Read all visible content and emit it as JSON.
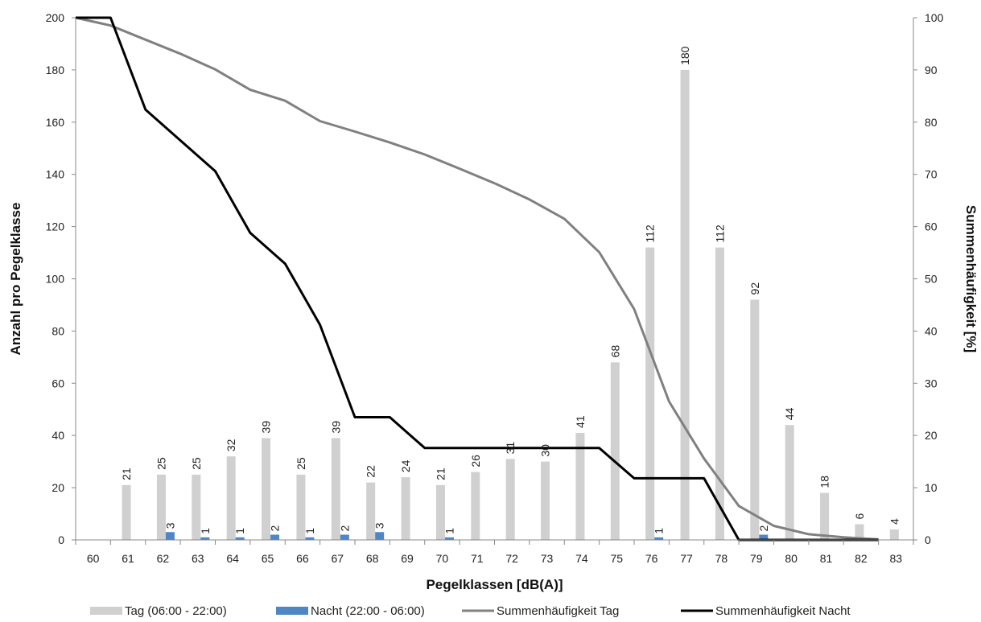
{
  "chart_data": {
    "type": "bar",
    "xlabel": "Pegelklassen [dB(A)]",
    "ylabel": "Anzahl pro Pegelklasse",
    "y2label": "Summenhäufigkeit [%]",
    "categories": [
      "60",
      "61",
      "62",
      "63",
      "64",
      "65",
      "66",
      "67",
      "68",
      "69",
      "70",
      "71",
      "72",
      "73",
      "74",
      "75",
      "76",
      "77",
      "78",
      "79",
      "80",
      "81",
      "82",
      "83"
    ],
    "ylim": [
      0,
      200
    ],
    "yticks": [
      0,
      20,
      40,
      60,
      80,
      100,
      120,
      140,
      160,
      180,
      200
    ],
    "y2lim": [
      0,
      100
    ],
    "y2ticks": [
      0,
      10,
      20,
      30,
      40,
      50,
      60,
      70,
      80,
      90,
      100
    ],
    "grid": false,
    "legend_position": "bottom",
    "series": [
      {
        "name": "Tag (06:00 - 22:00)",
        "kind": "bar",
        "axis": "left",
        "color": "#d0d0d0",
        "values": [
          null,
          21,
          25,
          25,
          32,
          39,
          25,
          39,
          22,
          24,
          21,
          26,
          31,
          30,
          41,
          68,
          112,
          180,
          112,
          92,
          44,
          18,
          6,
          4
        ],
        "labels": [
          null,
          "21",
          "25",
          "25",
          "32",
          "39",
          "25",
          "39",
          "22",
          "24",
          "21",
          "26",
          "31",
          "30",
          "41",
          "68",
          "112",
          "180",
          "112",
          "92",
          "44",
          "18",
          "6",
          "4"
        ]
      },
      {
        "name": "Nacht (22:00 - 06:00)",
        "kind": "bar",
        "axis": "left",
        "color": "#4f86c6",
        "values": [
          null,
          null,
          3,
          1,
          1,
          2,
          1,
          2,
          3,
          null,
          1,
          null,
          null,
          null,
          null,
          null,
          1,
          null,
          null,
          2,
          null,
          null,
          null,
          null
        ],
        "labels": [
          null,
          null,
          "3",
          "1",
          "1",
          "2",
          "1",
          "2",
          "3",
          null,
          "1",
          null,
          null,
          null,
          null,
          null,
          "1",
          null,
          null,
          "2",
          null,
          null,
          null,
          null
        ]
      },
      {
        "name": "Summenhäufigkeit Tag",
        "kind": "line",
        "axis": "right",
        "color": "#808080",
        "values": [
          100,
          98.5,
          95.8,
          93.1,
          90.1,
          86.2,
          84.1,
          80.2,
          78.2,
          76.1,
          73.8,
          71.1,
          68.3,
          65.2,
          61.5,
          55.1,
          44.2,
          26.5,
          15.6,
          6.5,
          2.7,
          1.1,
          0.5,
          0.1
        ]
      },
      {
        "name": "Summenhäufigkeit Nacht",
        "kind": "line",
        "axis": "right",
        "color": "#000000",
        "values": [
          100,
          100,
          82.4,
          76.5,
          70.6,
          58.8,
          52.9,
          41.2,
          23.5,
          23.5,
          17.6,
          17.6,
          17.6,
          17.6,
          17.6,
          17.6,
          11.8,
          11.8,
          11.8,
          0,
          0,
          0,
          0,
          0
        ]
      }
    ]
  }
}
